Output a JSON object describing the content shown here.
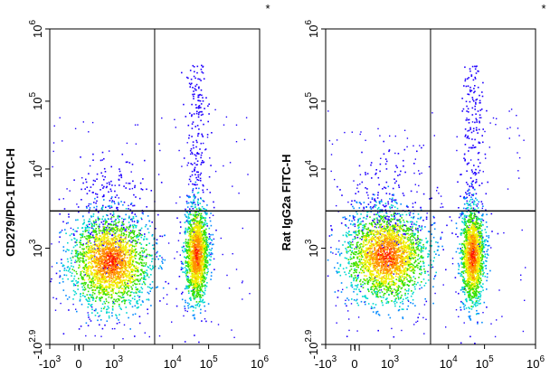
{
  "chart_data": [
    {
      "type": "scatter",
      "subtype": "flow-cytometry-density-dot-plot",
      "title": "",
      "xlabel": "",
      "ylabel": "CD279/PD-1 FITC-H",
      "x_scale": "biexponential",
      "y_scale": "biexponential",
      "x_ticks": [
        {
          "value": -1000,
          "label": "-10",
          "exp": "3"
        },
        {
          "value": 0,
          "label": "0",
          "exp": ""
        },
        {
          "value": 1000,
          "label": "10",
          "exp": "3"
        },
        {
          "value": 10000,
          "label": "10",
          "exp": "4"
        },
        {
          "value": 100000,
          "label": "10",
          "exp": "5"
        },
        {
          "value": 1000000,
          "label": "10",
          "exp": "6"
        }
      ],
      "y_ticks": [
        {
          "value": -794,
          "label": "-10",
          "exp": "2.9"
        },
        {
          "value": 1000,
          "label": "10",
          "exp": "3"
        },
        {
          "value": 10000,
          "label": "10",
          "exp": "4"
        },
        {
          "value": 100000,
          "label": "10",
          "exp": "5"
        },
        {
          "value": 1000000,
          "label": "10",
          "exp": "6"
        }
      ],
      "xlim": [
        -1000,
        1000000
      ],
      "ylim": [
        -794,
        1000000
      ],
      "gate_x": 5000,
      "gate_y": 3000,
      "corner_mark": "*",
      "populations": [
        {
          "name": "",
          "x_center": 700,
          "y_center": 450,
          "density": "high",
          "spread": "wide"
        },
        {
          "name": "",
          "x_center": 45000,
          "y_center": 700,
          "density": "high",
          "spread": "narrow",
          "tail_up_to": 40000
        }
      ],
      "grid": false
    },
    {
      "type": "scatter",
      "subtype": "flow-cytometry-density-dot-plot",
      "title": "",
      "xlabel": "",
      "ylabel": "Rat IgG2a FITC-H",
      "x_scale": "biexponential",
      "y_scale": "biexponential",
      "x_ticks": [
        {
          "value": -1000,
          "label": "-10",
          "exp": "3"
        },
        {
          "value": 0,
          "label": "0",
          "exp": ""
        },
        {
          "value": 1000,
          "label": "10",
          "exp": "3"
        },
        {
          "value": 10000,
          "label": "10",
          "exp": "4"
        },
        {
          "value": 100000,
          "label": "10",
          "exp": "5"
        },
        {
          "value": 1000000,
          "label": "10",
          "exp": "6"
        }
      ],
      "y_ticks": [
        {
          "value": -794,
          "label": "-10",
          "exp": "2.9"
        },
        {
          "value": 1000,
          "label": "10",
          "exp": "3"
        },
        {
          "value": 10000,
          "label": "10",
          "exp": "4"
        },
        {
          "value": 100000,
          "label": "10",
          "exp": "5"
        },
        {
          "value": 1000000,
          "label": "10",
          "exp": "6"
        }
      ],
      "xlim": [
        -1000,
        1000000
      ],
      "ylim": [
        -794,
        1000000
      ],
      "gate_x": 5000,
      "gate_y": 3000,
      "corner_mark": "*",
      "populations": [
        {
          "name": "",
          "x_center": 700,
          "y_center": 650,
          "density": "high",
          "spread": "wide"
        },
        {
          "name": "",
          "x_center": 45000,
          "y_center": 650,
          "density": "high",
          "spread": "narrow"
        }
      ],
      "grid": false
    }
  ],
  "colormap": [
    "#1f00ff",
    "#0088ff",
    "#00d8d0",
    "#36e000",
    "#f0f000",
    "#ff9000",
    "#ff1400"
  ]
}
